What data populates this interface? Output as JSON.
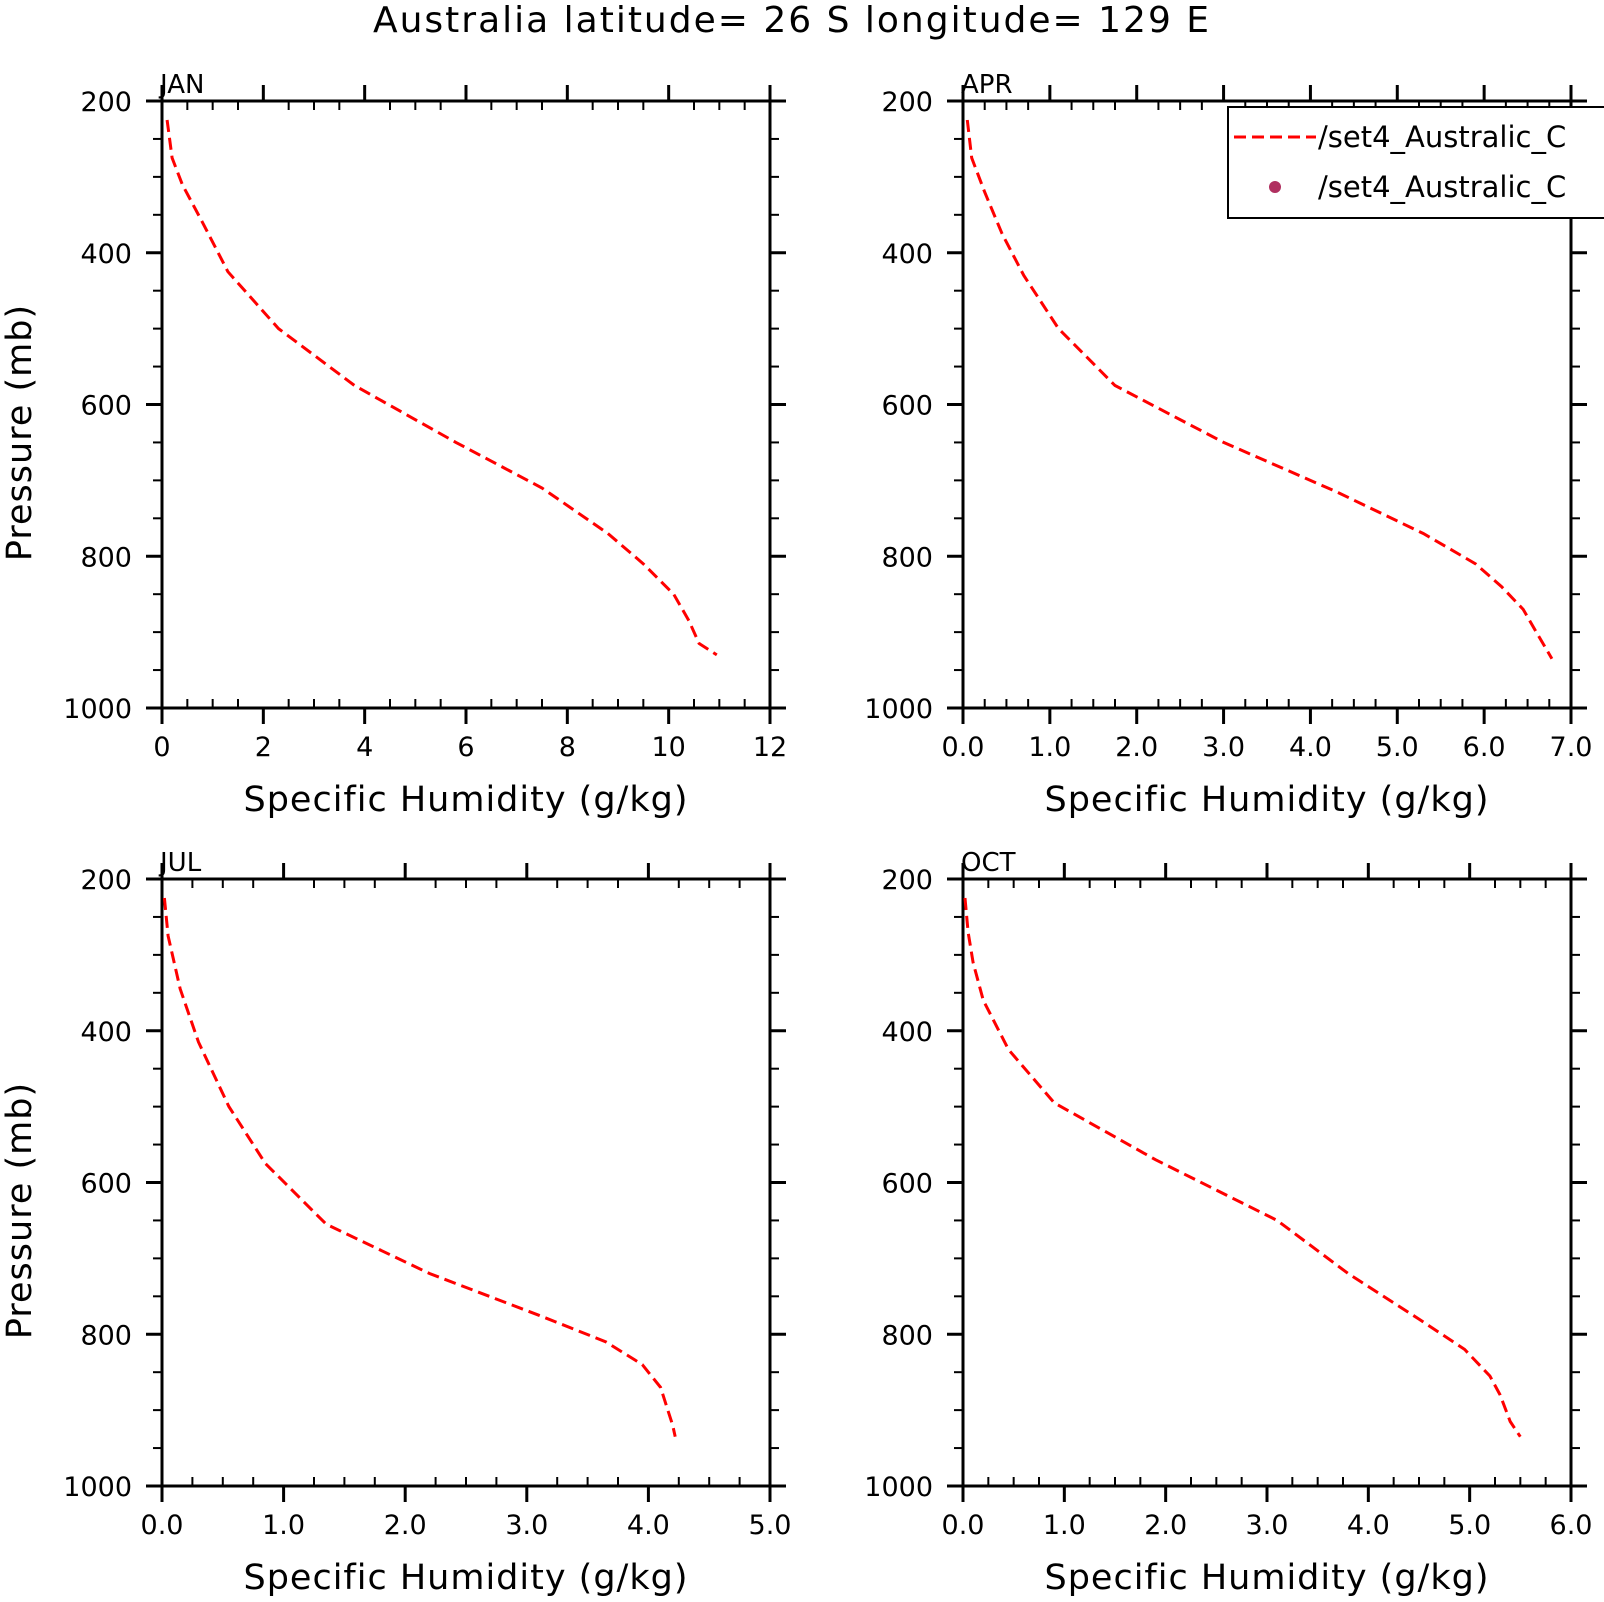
{
  "figure": {
    "title": "Australia  latitude= 26 S longitude= 129 E"
  },
  "legend": {
    "entries": [
      {
        "label": "/set4_Australic_C",
        "marker": "dashed-line",
        "color": "#ff0000"
      },
      {
        "label": "/set4_Australic_C",
        "marker": "dot",
        "color": "#b03060"
      }
    ],
    "placement": "top-right of APR panel, clipped at right edge"
  },
  "chart_data": [
    {
      "type": "line",
      "panel_label": "JAN",
      "xlabel": "Specific Humidity (g/kg)",
      "ylabel": "Pressure (mb)",
      "xlim": [
        0,
        12
      ],
      "ylim": [
        200,
        1000
      ],
      "y_inverted": true,
      "x_ticks": [
        0,
        2,
        4,
        6,
        8,
        10,
        12
      ],
      "x_tick_labels": [
        "0",
        "2",
        "4",
        "6",
        "8",
        "10",
        "12"
      ],
      "x_minor_step": 0.5,
      "y_ticks": [
        200,
        400,
        600,
        800,
        1000
      ],
      "y_tick_labels": [
        "200",
        "400",
        "600",
        "800",
        "1000"
      ],
      "y_minor_step": 50,
      "series": [
        {
          "line_style": "dashed",
          "color": "#ff0000",
          "x": [
            0.1,
            0.2,
            0.4,
            0.8,
            1.3,
            2.3,
            3.8,
            5.8,
            7.5,
            8.8,
            9.5,
            10.1,
            10.4,
            10.6,
            10.95
          ],
          "y": [
            225,
            275,
            310,
            360,
            425,
            500,
            575,
            650,
            710,
            770,
            810,
            850,
            885,
            915,
            930
          ]
        }
      ]
    },
    {
      "type": "line",
      "panel_label": "APR",
      "xlabel": "Specific Humidity (g/kg)",
      "ylabel": "",
      "xlim": [
        0,
        7
      ],
      "ylim": [
        200,
        1000
      ],
      "y_inverted": true,
      "x_ticks": [
        0,
        1,
        2,
        3,
        4,
        5,
        6,
        7
      ],
      "x_tick_labels": [
        "0.0",
        "1.0",
        "2.0",
        "3.0",
        "4.0",
        "5.0",
        "6.0",
        "7.0"
      ],
      "x_minor_step": 0.25,
      "y_ticks": [
        200,
        400,
        600,
        800,
        1000
      ],
      "y_tick_labels": [
        "200",
        "400",
        "600",
        "800",
        "1000"
      ],
      "y_minor_step": 50,
      "series": [
        {
          "line_style": "dashed",
          "color": "#ff0000",
          "x": [
            0.05,
            0.1,
            0.25,
            0.45,
            0.7,
            1.1,
            1.75,
            3.0,
            4.3,
            5.3,
            5.9,
            6.2,
            6.45,
            6.6,
            6.78
          ],
          "y": [
            225,
            275,
            320,
            375,
            430,
            500,
            575,
            650,
            715,
            770,
            810,
            840,
            870,
            900,
            935
          ]
        }
      ]
    },
    {
      "type": "line",
      "panel_label": "JUL",
      "xlabel": "Specific Humidity (g/kg)",
      "ylabel": "Pressure (mb)",
      "xlim": [
        0,
        5
      ],
      "ylim": [
        200,
        1000
      ],
      "y_inverted": true,
      "x_ticks": [
        0,
        1,
        2,
        3,
        4,
        5
      ],
      "x_tick_labels": [
        "0.0",
        "1.0",
        "2.0",
        "3.0",
        "4.0",
        "5.0"
      ],
      "x_minor_step": 0.25,
      "y_ticks": [
        200,
        400,
        600,
        800,
        1000
      ],
      "y_tick_labels": [
        "200",
        "400",
        "600",
        "800",
        "1000"
      ],
      "y_minor_step": 50,
      "series": [
        {
          "line_style": "dashed",
          "color": "#ff0000",
          "x": [
            0.02,
            0.05,
            0.15,
            0.3,
            0.55,
            0.85,
            1.35,
            2.2,
            3.1,
            3.65,
            3.95,
            4.1,
            4.15,
            4.2,
            4.22
          ],
          "y": [
            225,
            275,
            345,
            415,
            500,
            575,
            655,
            720,
            775,
            810,
            840,
            870,
            895,
            920,
            935
          ]
        }
      ]
    },
    {
      "type": "line",
      "panel_label": "OCT",
      "xlabel": "Specific Humidity (g/kg)",
      "ylabel": "",
      "xlim": [
        0,
        6
      ],
      "ylim": [
        200,
        1000
      ],
      "y_inverted": true,
      "x_ticks": [
        0,
        1,
        2,
        3,
        4,
        5,
        6
      ],
      "x_tick_labels": [
        "0.0",
        "1.0",
        "2.0",
        "3.0",
        "4.0",
        "5.0",
        "6.0"
      ],
      "x_minor_step": 0.25,
      "y_ticks": [
        200,
        400,
        600,
        800,
        1000
      ],
      "y_tick_labels": [
        "200",
        "400",
        "600",
        "800",
        "1000"
      ],
      "y_minor_step": 50,
      "series": [
        {
          "line_style": "dashed",
          "color": "#ff0000",
          "x": [
            0.02,
            0.05,
            0.1,
            0.2,
            0.45,
            0.9,
            1.9,
            3.1,
            3.8,
            4.5,
            4.95,
            5.2,
            5.3,
            5.4,
            5.5
          ],
          "y": [
            225,
            270,
            310,
            360,
            425,
            495,
            570,
            650,
            720,
            780,
            820,
            855,
            880,
            915,
            935
          ]
        }
      ]
    }
  ]
}
